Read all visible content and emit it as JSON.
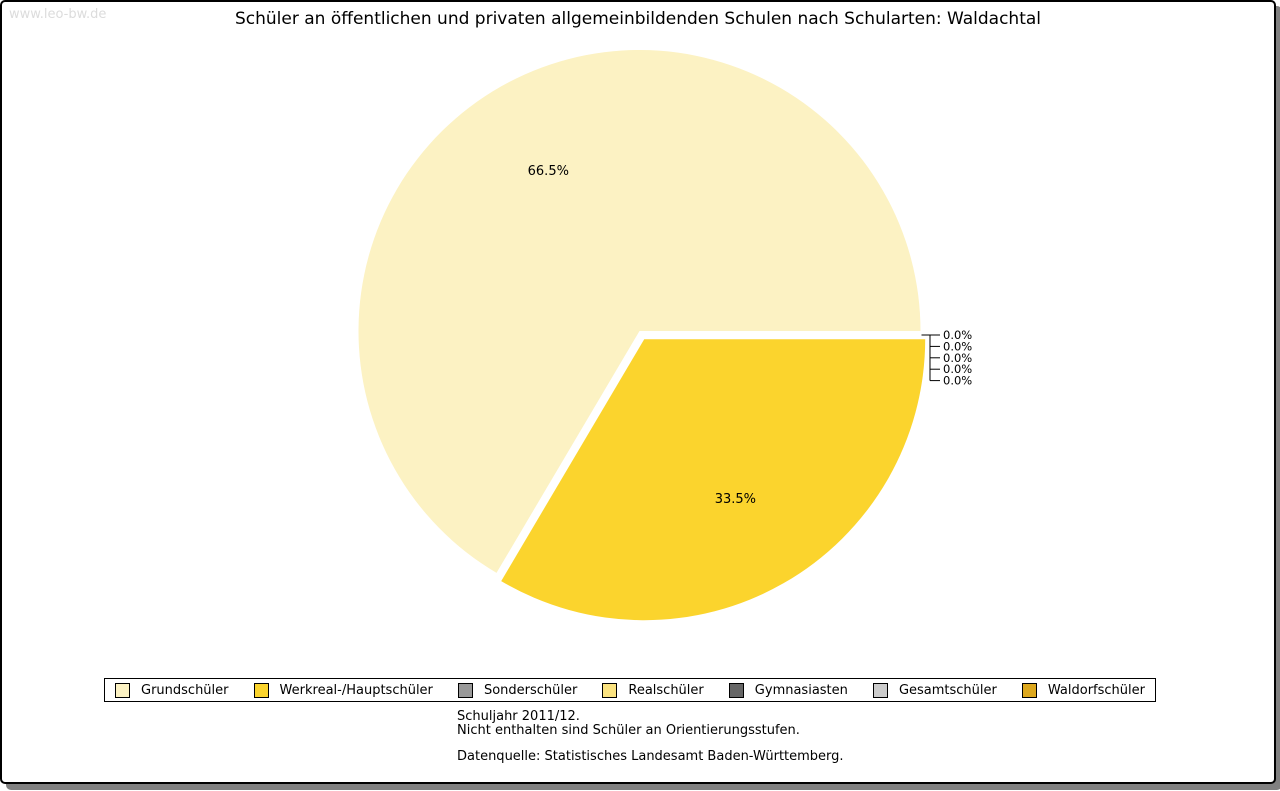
{
  "watermark": "www.leo-bw.de",
  "header": {
    "title": "Schüler an öffentlichen und privaten allgemeinbildenden Schulen nach Schularten: Waldachtal"
  },
  "chart_data": {
    "type": "pie",
    "title": "Schüler an öffentlichen und privaten allgemeinbildenden Schulen nach Schularten: Waldachtal",
    "categories": [
      "Grundschüler",
      "Werkreal-/Hauptschüler",
      "Sonderschüler",
      "Realschüler",
      "Gymnasiasten",
      "Gesamtschüler",
      "Waldorfschüler"
    ],
    "values": [
      66.5,
      33.5,
      0.0,
      0.0,
      0.0,
      0.0,
      0.0
    ],
    "slice_labels": [
      "66.5%",
      "33.5%",
      "0.0%",
      "0.0%",
      "0.0%",
      "0.0%",
      "0.0%"
    ],
    "colors": [
      "#FCF2C3",
      "#FBD42D",
      "#999999",
      "#FBE380",
      "#666666",
      "#CCCCCC",
      "#DDA81E"
    ],
    "start_angle_deg": 0,
    "direction": "counterclockwise",
    "exploded_slice_index": 1,
    "legend_position": "bottom"
  },
  "footer": {
    "line1": "Schuljahr 2011/12.",
    "line2": "Nicht enthalten sind Schüler an Orientierungsstufen.",
    "source": "Datenquelle: Statistisches Landesamt Baden-Württemberg."
  }
}
